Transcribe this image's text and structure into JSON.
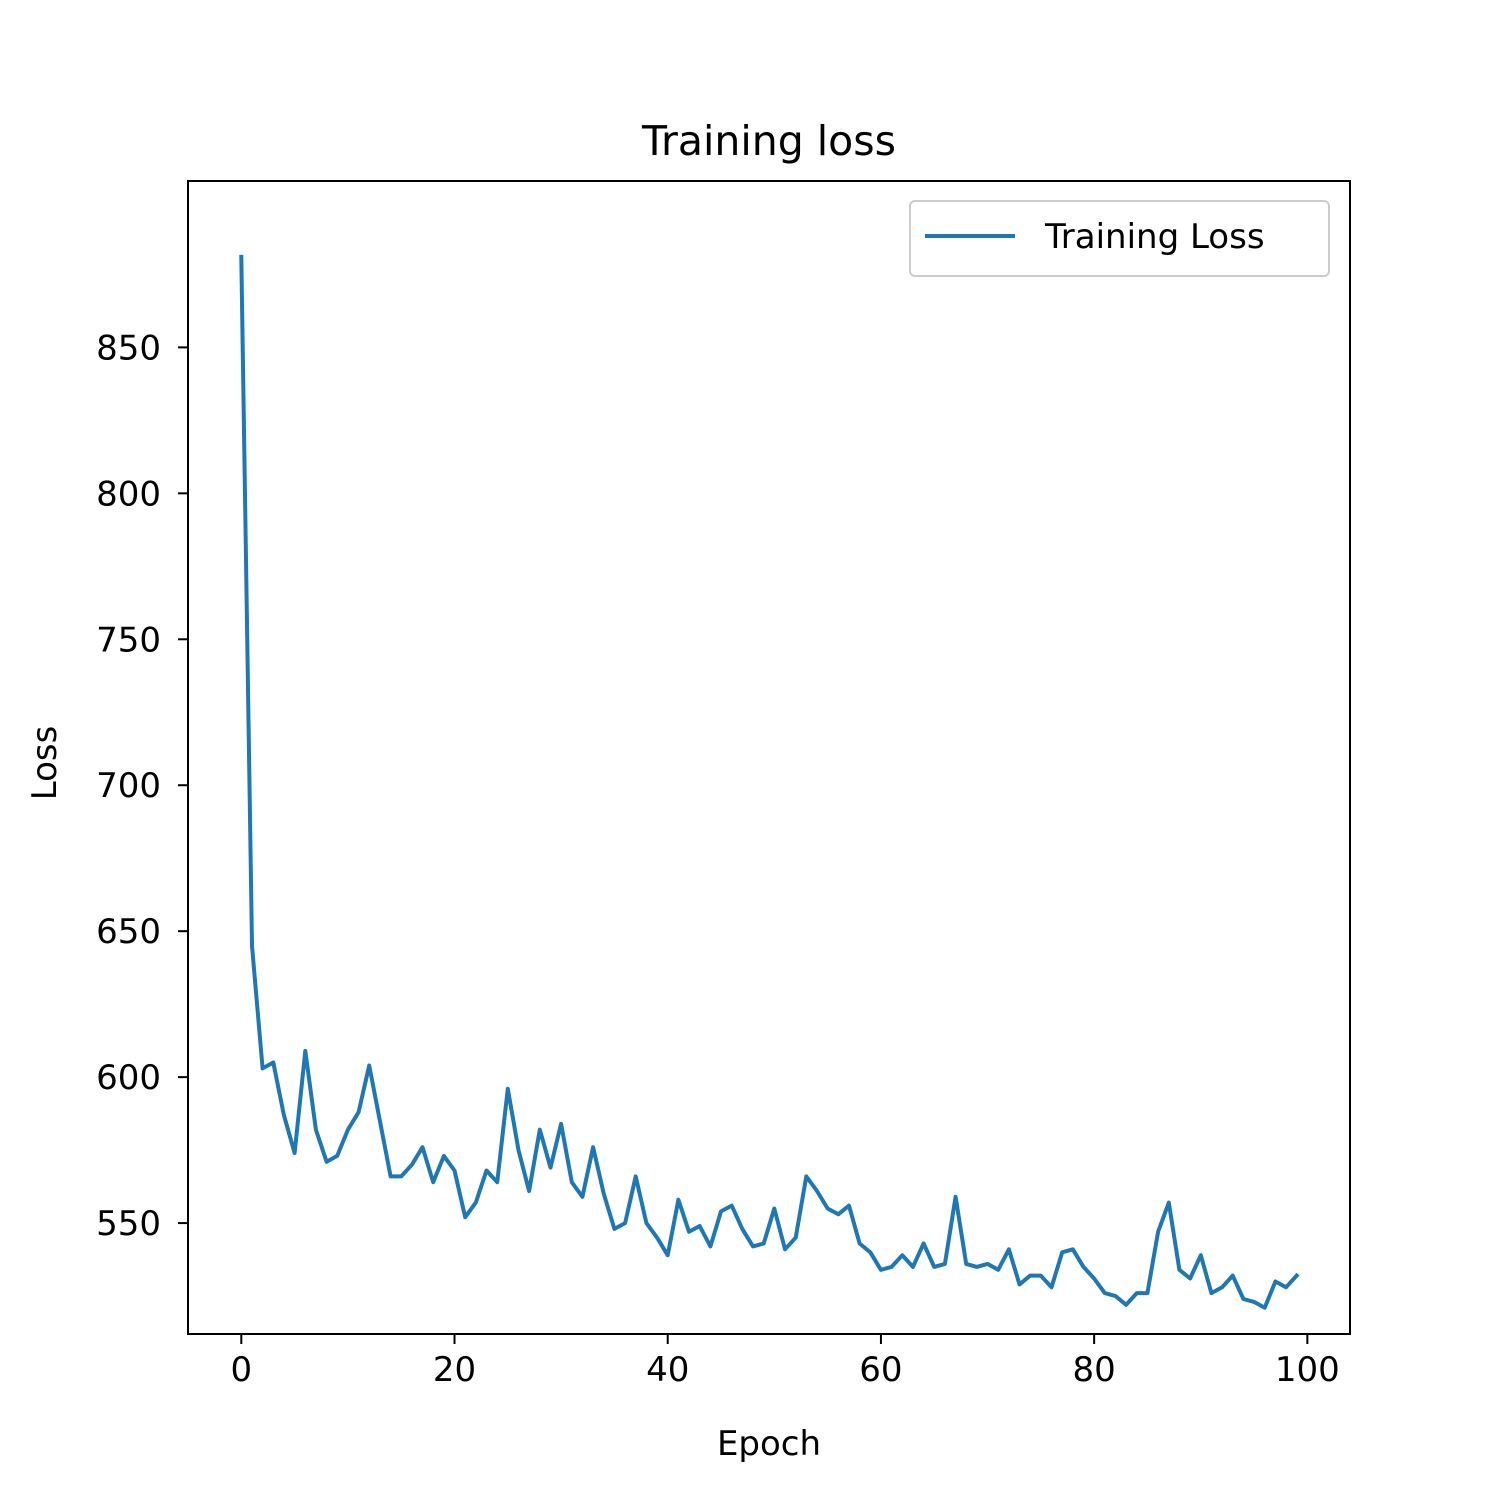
{
  "chart_data": {
    "type": "line",
    "title": "Training loss",
    "xlabel": "Epoch",
    "ylabel": "Loss",
    "xlim": [
      -5,
      104
    ],
    "ylim": [
      512,
      907
    ],
    "xticks": [
      0,
      20,
      40,
      60,
      80,
      100
    ],
    "yticks": [
      550,
      600,
      650,
      700,
      750,
      800,
      850
    ],
    "grid": false,
    "legend_position": "top-right",
    "series": [
      {
        "name": "Training Loss",
        "color": "#1f77b4",
        "x": [
          0,
          1,
          2,
          3,
          4,
          5,
          6,
          7,
          8,
          9,
          10,
          11,
          12,
          13,
          14,
          15,
          16,
          17,
          18,
          19,
          20,
          21,
          22,
          23,
          24,
          25,
          26,
          27,
          28,
          29,
          30,
          31,
          32,
          33,
          34,
          35,
          36,
          37,
          38,
          39,
          40,
          41,
          42,
          43,
          44,
          45,
          46,
          47,
          48,
          49,
          50,
          51,
          52,
          53,
          54,
          55,
          56,
          57,
          58,
          59,
          60,
          61,
          62,
          63,
          64,
          65,
          66,
          67,
          68,
          69,
          70,
          71,
          72,
          73,
          74,
          75,
          76,
          77,
          78,
          79,
          80,
          81,
          82,
          83,
          84,
          85,
          86,
          87,
          88,
          89,
          90,
          91,
          92,
          93,
          94,
          95,
          96,
          97,
          98,
          99
        ],
        "y": [
          881,
          645,
          603,
          605,
          587,
          574,
          609,
          582,
          571,
          573,
          582,
          588,
          604,
          585,
          566,
          566,
          570,
          576,
          564,
          573,
          568,
          552,
          557,
          568,
          564,
          596,
          575,
          561,
          582,
          569,
          584,
          564,
          559,
          576,
          560,
          548,
          550,
          566,
          550,
          545,
          539,
          558,
          547,
          549,
          542,
          554,
          556,
          548,
          542,
          543,
          555,
          541,
          545,
          566,
          561,
          555,
          553,
          556,
          543,
          540,
          534,
          535,
          539,
          535,
          543,
          535,
          536,
          559,
          536,
          535,
          536,
          534,
          541,
          529,
          532,
          532,
          528,
          540,
          541,
          535,
          531,
          526,
          525,
          522,
          526,
          526,
          547,
          557,
          534,
          531,
          539,
          526,
          528,
          532,
          524,
          523,
          521,
          530,
          528,
          532
        ]
      }
    ]
  }
}
